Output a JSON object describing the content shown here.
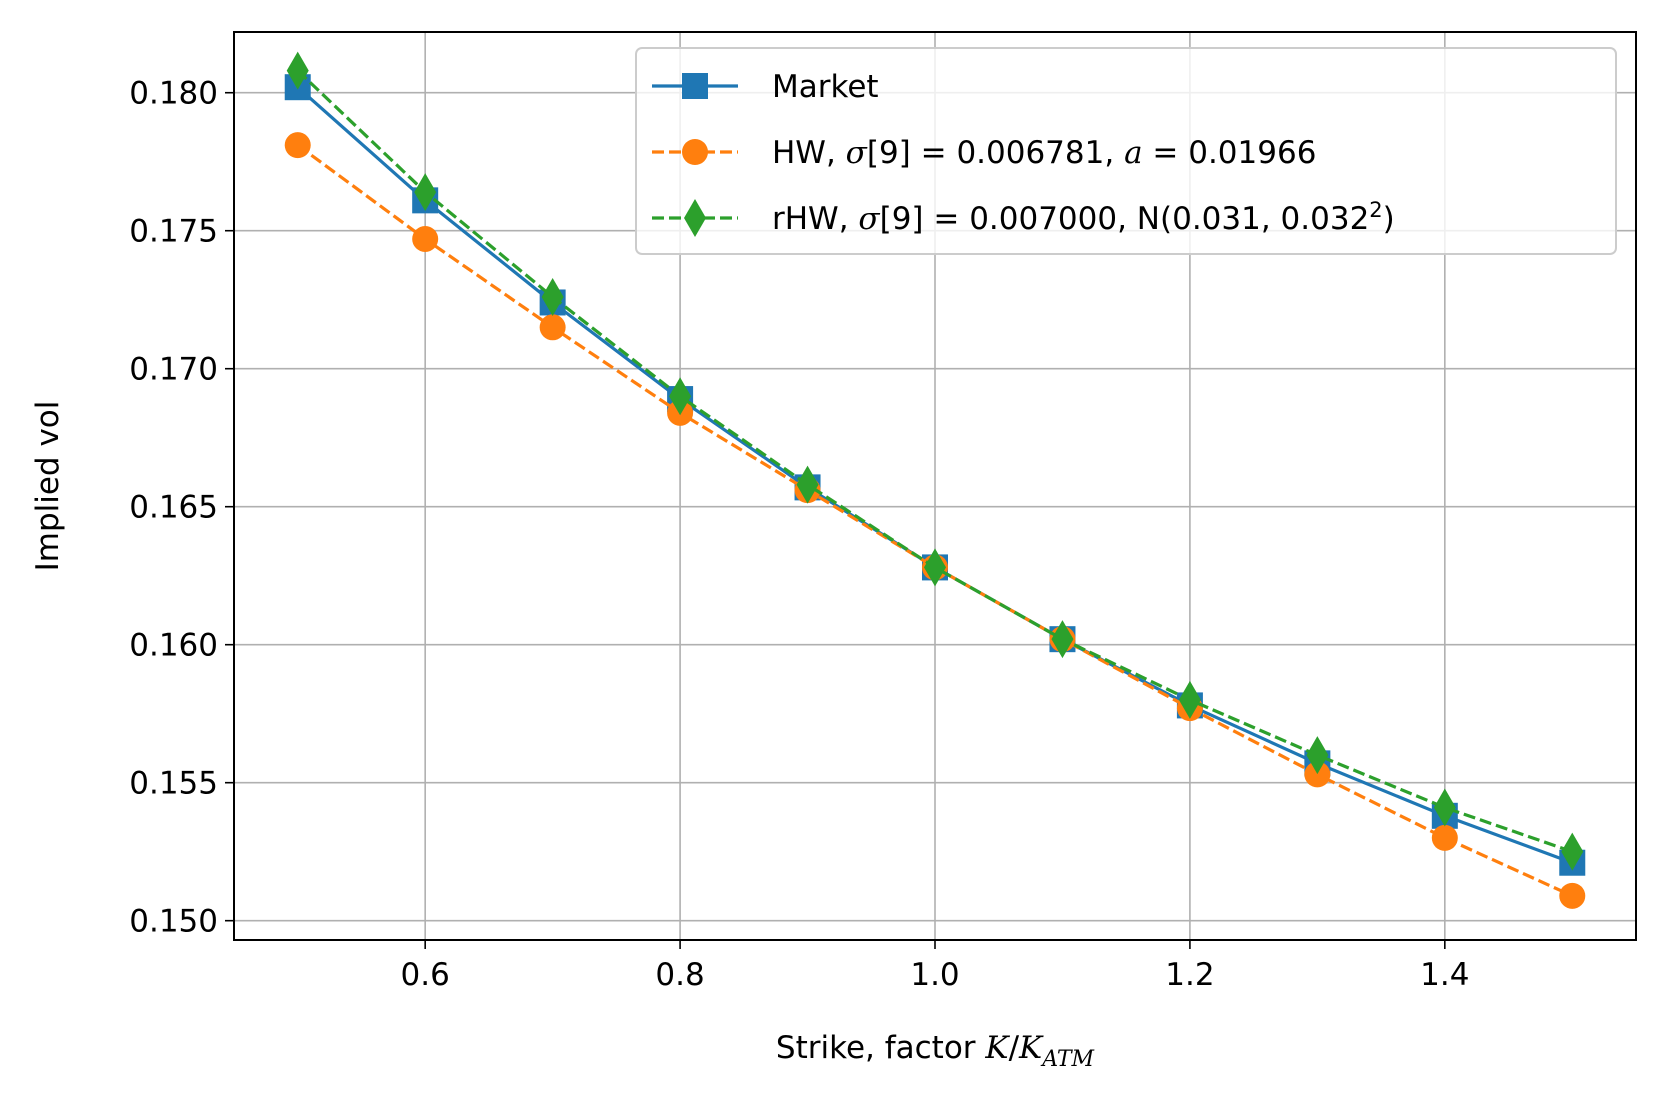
{
  "chart_data": {
    "type": "line",
    "xlabel": {
      "text": "Strike, factor ",
      "italic": "K",
      "slash": "/",
      "italic2": "K",
      "sub": "ATM"
    },
    "ylabel": "Implied vol",
    "xlim": [
      0.45,
      1.55
    ],
    "ylim": [
      0.1493,
      0.1822
    ],
    "xticks": [
      0.6,
      0.8,
      1.0,
      1.2,
      1.4
    ],
    "xtick_labels": [
      "0.6",
      "0.8",
      "1.0",
      "1.2",
      "1.4"
    ],
    "yticks": [
      0.15,
      0.155,
      0.16,
      0.165,
      0.17,
      0.175,
      0.18
    ],
    "ytick_labels": [
      "0.150",
      "0.155",
      "0.160",
      "0.165",
      "0.170",
      "0.175",
      "0.180"
    ],
    "grid": true,
    "legend_position": "top-right",
    "x": [
      0.5,
      0.6,
      0.7,
      0.8,
      0.9,
      1.0,
      1.1,
      1.2,
      1.3,
      1.4,
      1.5
    ],
    "series": [
      {
        "name": "Market",
        "color": "#1f77b4",
        "marker": "square",
        "linestyle": "solid",
        "values": [
          0.1802,
          0.1761,
          0.1724,
          0.1689,
          0.1657,
          0.1628,
          0.1602,
          0.1578,
          0.1557,
          0.1538,
          0.1521
        ]
      },
      {
        "name": "HW, σ[9] = 0.006781, a = 0.01966",
        "legend_parts": [
          {
            "t": "HW, ",
            "m": false
          },
          {
            "t": "σ",
            "m": true
          },
          {
            "t": "[9] = 0.006781, ",
            "m": false
          },
          {
            "t": "a",
            "m": true
          },
          {
            "t": " = 0.01966",
            "m": false
          }
        ],
        "color": "#ff7f0e",
        "marker": "circle",
        "linestyle": "dashed",
        "values": [
          0.1781,
          0.1747,
          0.1715,
          0.1684,
          0.1656,
          0.1628,
          0.1602,
          0.1577,
          0.1553,
          0.153,
          0.1509
        ]
      },
      {
        "name": "rHW, σ[9] = 0.007000, N(0.031, 0.032²)",
        "legend_parts": [
          {
            "t": "rHW, ",
            "m": false
          },
          {
            "t": "σ",
            "m": true
          },
          {
            "t": "[9] = 0.007000, N(0.031, 0.032",
            "m": false
          },
          {
            "t": "2",
            "m": false,
            "sup": true
          },
          {
            "t": ")",
            "m": false
          }
        ],
        "color": "#2ca02c",
        "marker": "thin_diamond",
        "linestyle": "dashed",
        "values": [
          0.1808,
          0.1764,
          0.1726,
          0.169,
          0.1658,
          0.1628,
          0.1602,
          0.158,
          0.156,
          0.1541,
          0.1525
        ]
      }
    ]
  }
}
